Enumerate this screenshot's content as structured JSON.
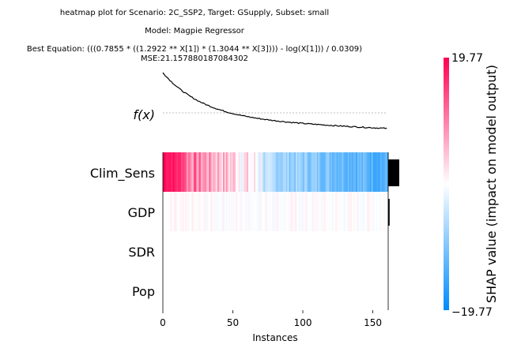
{
  "chart_data": {
    "type": "heatmap",
    "title_lines": [
      "heatmap plot for Scenario: 2C_SSP2, Target: GSupply, Subset: small",
      "Model: Magpie Regressor",
      "Best Equation: (((0.7855 * ((1.2922 ** X[1]) * (1.3044 ** X[3]))) - log(X[1])) / 0.0309)",
      "MSE:21.157880187084302"
    ],
    "fx_label": "f(x)",
    "xlabel": "Instances",
    "x_ticks": [
      0,
      50,
      100,
      150
    ],
    "xlim": [
      0,
      161
    ],
    "n_instances": 161,
    "features": [
      "Clim_Sens",
      "GDP",
      "SDR",
      "Pop"
    ],
    "feature_importance": [
      7.7,
      1.0,
      0.0,
      0.0
    ],
    "colorbar": {
      "label": "SHAP value (impact on model output)",
      "max_label": "19.77",
      "min_label": "−19.77",
      "vmin": -19.77,
      "vmax": 19.77,
      "colors": {
        "negative": "#008bfb",
        "neutral": "#ffffff",
        "positive": "#ff0051"
      }
    }
  }
}
